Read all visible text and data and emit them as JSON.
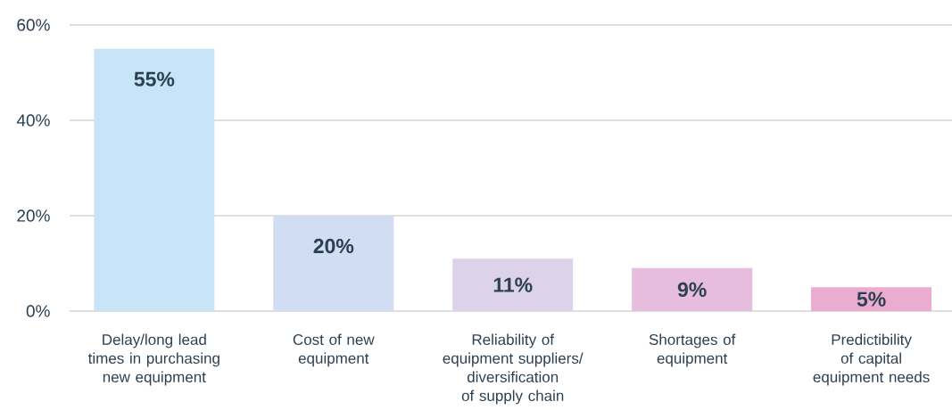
{
  "chart_data": {
    "type": "bar",
    "categories": [
      "Delay/long lead times in purchasing new equipment",
      "Cost of new equipment",
      "Reliability of equipment suppliers/ diversification of supply chain",
      "Shortages of equipment",
      "Predictibility of capital equipment needs"
    ],
    "values": [
      55,
      20,
      11,
      9,
      5
    ],
    "colors": [
      "#c8e5f8",
      "#d1ddf2",
      "#dcd2ea",
      "#e6bddd",
      "#eaaccf"
    ],
    "value_labels": [
      "55%",
      "20%",
      "11%",
      "9%",
      "5%"
    ],
    "ylim": [
      0,
      60
    ],
    "yticks": [
      {
        "value": 0,
        "label": "0%"
      },
      {
        "value": 20,
        "label": "20%"
      },
      {
        "value": 40,
        "label": "40%"
      },
      {
        "value": 60,
        "label": "60%"
      }
    ],
    "grid": "y"
  }
}
